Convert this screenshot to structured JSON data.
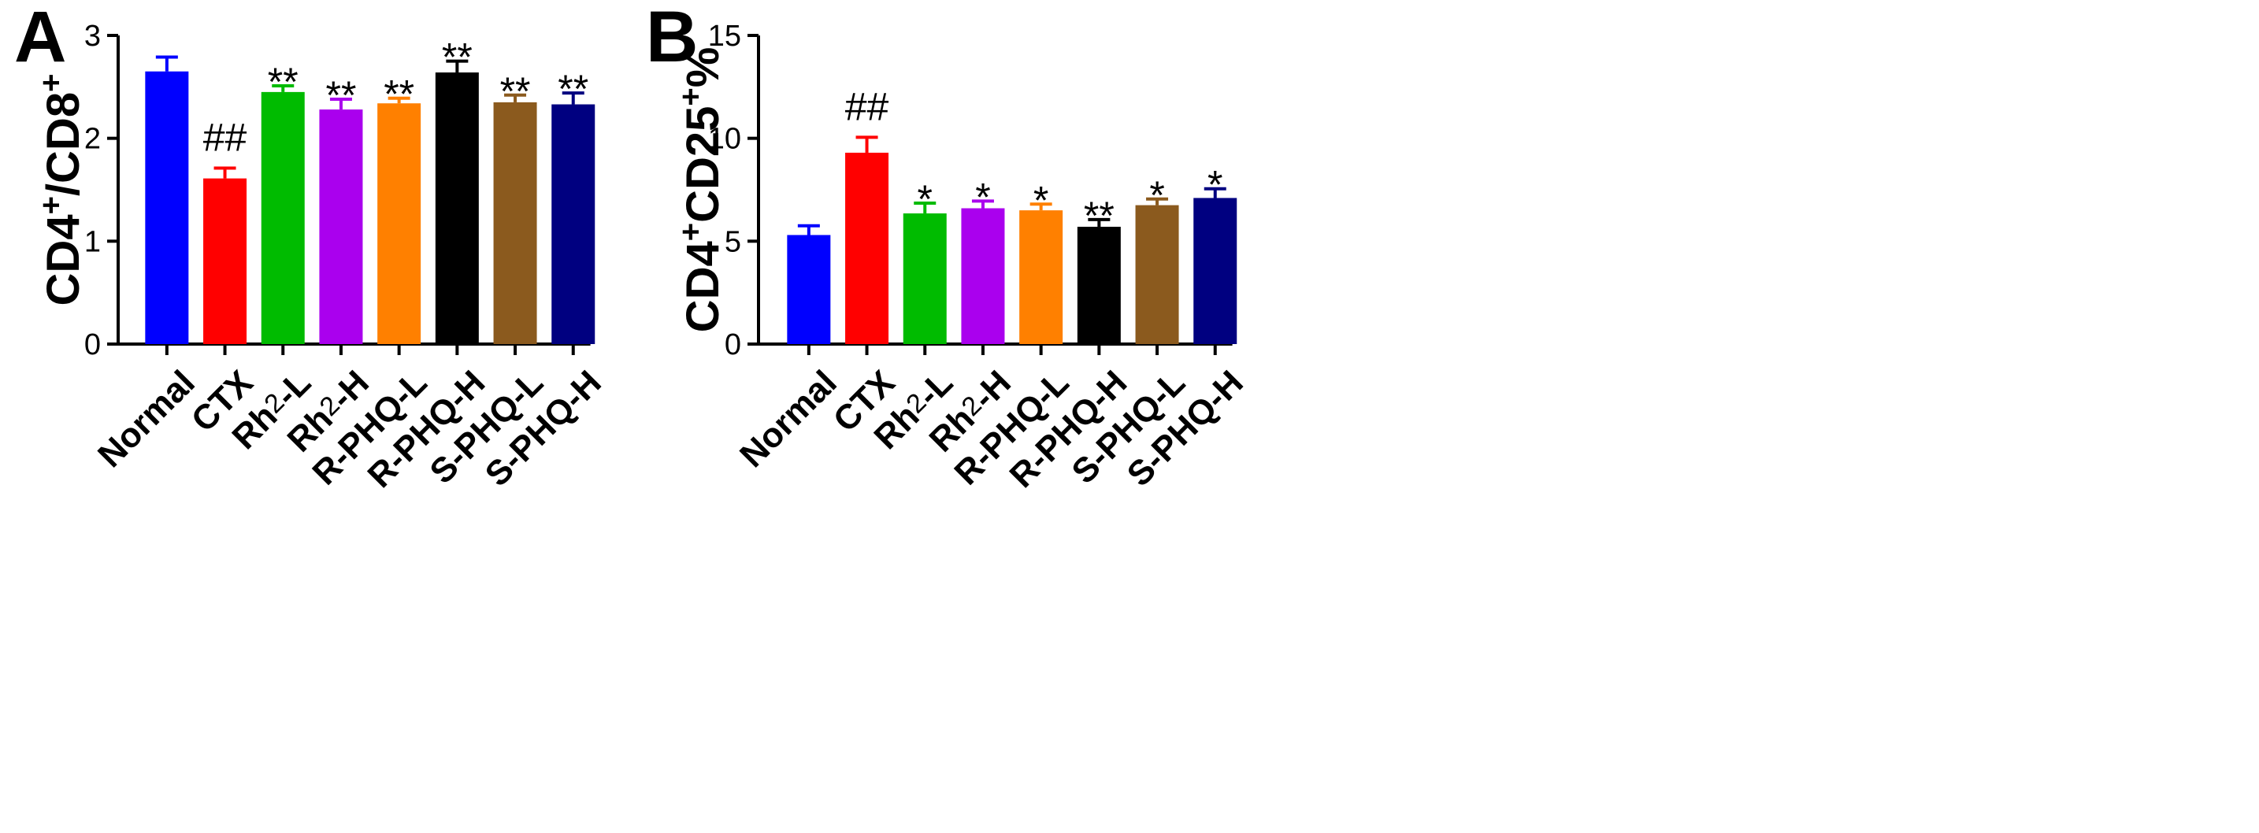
{
  "chart_data": [
    {
      "type": "bar",
      "panel": "A",
      "categories": [
        "Normal",
        "CTX",
        "Rh2-L",
        "Rh2-H",
        "R-PHQ-L",
        "R-PHQ-H",
        "S-PHQ-L",
        "S-PHQ-H"
      ],
      "category_parts": [
        {
          "main": "Normal",
          "sub": "",
          "rest": ""
        },
        {
          "main": "CTX",
          "sub": "",
          "rest": ""
        },
        {
          "main": "Rh",
          "sub": "2",
          "rest": "-L"
        },
        {
          "main": "Rh",
          "sub": "2",
          "rest": "-H"
        },
        {
          "main": "R-PHQ-L",
          "sub": "",
          "rest": ""
        },
        {
          "main": "R-PHQ-H",
          "sub": "",
          "rest": ""
        },
        {
          "main": "S-PHQ-L",
          "sub": "",
          "rest": ""
        },
        {
          "main": "S-PHQ-H",
          "sub": "",
          "rest": ""
        }
      ],
      "values": [
        2.65,
        1.61,
        2.45,
        2.28,
        2.34,
        2.64,
        2.35,
        2.33
      ],
      "errors": [
        0.14,
        0.1,
        0.06,
        0.1,
        0.05,
        0.11,
        0.07,
        0.11
      ],
      "significance": [
        "",
        "##",
        "**",
        "**",
        "**",
        "**",
        "**",
        "**"
      ],
      "colors": [
        "#0000ff",
        "#ff0000",
        "#00bb00",
        "#aa00ee",
        "#ff8000",
        "#000000",
        "#8b5a1e",
        "#000080"
      ],
      "ylabel_parts": [
        {
          "text": "CD4",
          "sup": false
        },
        {
          "text": "+",
          "sup": true
        },
        {
          "text": "/CD8",
          "sup": false
        },
        {
          "text": "+",
          "sup": true
        }
      ],
      "ylim": [
        0,
        3
      ],
      "yticks": [
        "0",
        "1",
        "2",
        "3"
      ]
    },
    {
      "type": "bar",
      "panel": "B",
      "categories": [
        "Normal",
        "CTX",
        "Rh2-L",
        "Rh2-H",
        "R-PHQ-L",
        "R-PHQ-H",
        "S-PHQ-L",
        "S-PHQ-H"
      ],
      "category_parts": [
        {
          "main": "Normal",
          "sub": "",
          "rest": ""
        },
        {
          "main": "CTX",
          "sub": "",
          "rest": ""
        },
        {
          "main": "Rh",
          "sub": "2",
          "rest": "-L"
        },
        {
          "main": "Rh",
          "sub": "2",
          "rest": "-H"
        },
        {
          "main": "R-PHQ-L",
          "sub": "",
          "rest": ""
        },
        {
          "main": "R-PHQ-H",
          "sub": "",
          "rest": ""
        },
        {
          "main": "S-PHQ-L",
          "sub": "",
          "rest": ""
        },
        {
          "main": "S-PHQ-H",
          "sub": "",
          "rest": ""
        }
      ],
      "values": [
        5.3,
        9.3,
        6.35,
        6.6,
        6.5,
        5.7,
        6.75,
        7.1
      ],
      "errors": [
        0.45,
        0.75,
        0.5,
        0.35,
        0.3,
        0.35,
        0.3,
        0.45
      ],
      "significance": [
        "",
        "##",
        "*",
        "*",
        "*",
        "**",
        "*",
        "*"
      ],
      "colors": [
        "#0000ff",
        "#ff0000",
        "#00bb00",
        "#aa00ee",
        "#ff8000",
        "#000000",
        "#8b5a1e",
        "#000080"
      ],
      "ylabel_parts": [
        {
          "text": "CD4",
          "sup": false
        },
        {
          "text": "+",
          "sup": true
        },
        {
          "text": "CD25",
          "sup": false
        },
        {
          "text": "+",
          "sup": true
        },
        {
          "text": "%",
          "sup": false
        }
      ],
      "ylim": [
        0,
        15
      ],
      "yticks": [
        "0",
        "5",
        "10",
        "15"
      ]
    }
  ]
}
